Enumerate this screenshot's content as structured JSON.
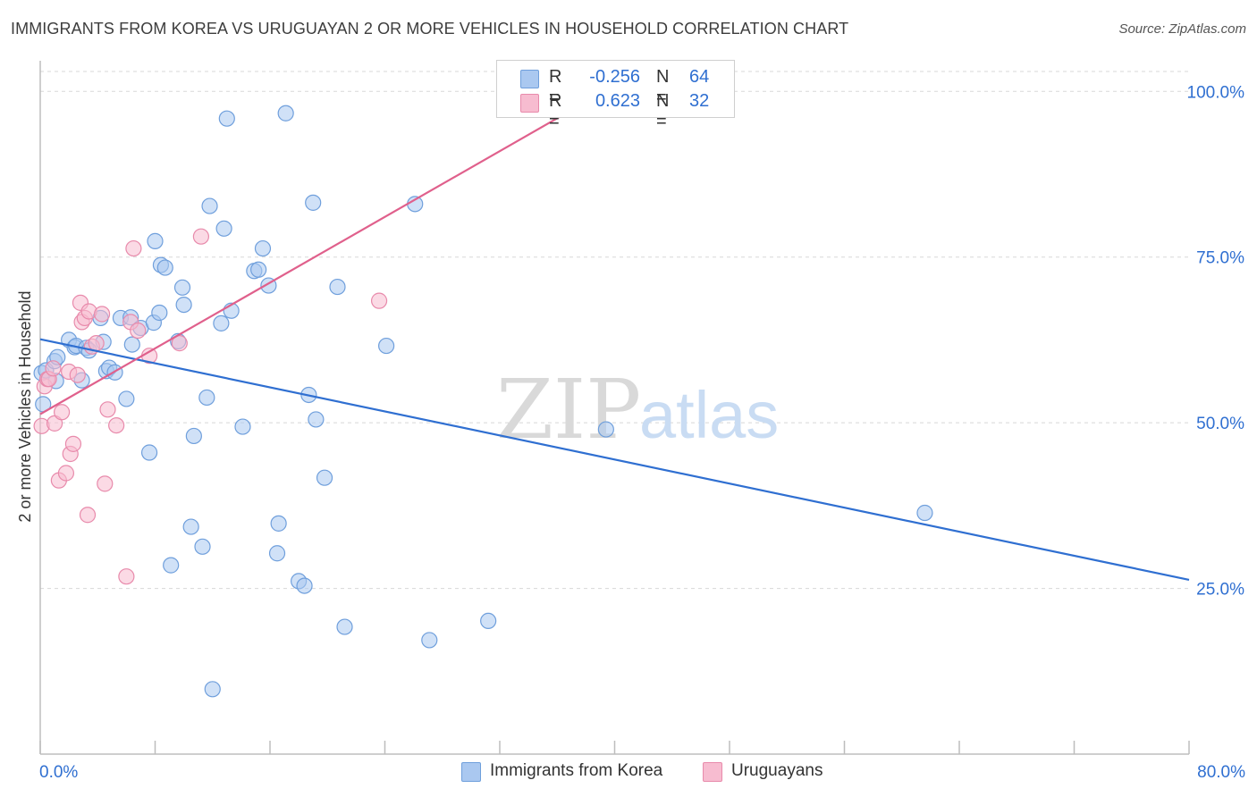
{
  "title": "IMMIGRANTS FROM KOREA VS URUGUAYAN 2 OR MORE VEHICLES IN HOUSEHOLD CORRELATION CHART",
  "source": "Source: ZipAtlas.com",
  "watermark": {
    "zip": "ZIP",
    "atlas": "atlas"
  },
  "stats": {
    "korea": {
      "r_label": "R =",
      "r_value": "-0.256",
      "n_label": "N =",
      "n_value": "64"
    },
    "uruguay": {
      "r_label": "R =",
      "r_value": "0.623",
      "n_label": "N =",
      "n_value": "32"
    }
  },
  "colors": {
    "korea_fill": "#aac8f0",
    "korea_stroke": "#6f9fdc",
    "korea_line": "#2f6fd1",
    "uruguay_fill": "#f7bcd0",
    "uruguay_stroke": "#e88aab",
    "uruguay_line": "#e0608c",
    "axis_label": "#2f6fd1",
    "grid": "#d8d8d8"
  },
  "legend": {
    "korea": "Immigrants from Korea",
    "uruguay": "Uruguayans"
  },
  "chart_data": {
    "type": "scatter",
    "title": "IMMIGRANTS FROM KOREA VS URUGUAYAN 2 OR MORE VEHICLES IN HOUSEHOLD CORRELATION CHART",
    "xlabel": "",
    "ylabel": "2 or more Vehicles in Household",
    "xlim": [
      0,
      80
    ],
    "ylim": [
      0,
      103
    ],
    "x_tick_labels": [
      "0.0%",
      "80.0%"
    ],
    "y_ticks": [
      25,
      50,
      75,
      100
    ],
    "y_tick_labels": [
      "25.0%",
      "50.0%",
      "75.0%",
      "100.0%"
    ],
    "grid": "horizontal dashed",
    "legend_position": "bottom-center",
    "series": [
      {
        "name": "Immigrants from Korea",
        "trend": {
          "x": [
            0,
            80
          ],
          "y": [
            62.6,
            26.3
          ]
        },
        "points": [
          [
            0.2,
            52.8
          ],
          [
            0.1,
            57.5
          ],
          [
            0.4,
            57.9
          ],
          [
            1.0,
            59.3
          ],
          [
            1.1,
            56.3
          ],
          [
            1.2,
            59.9
          ],
          [
            2.0,
            62.5
          ],
          [
            2.4,
            61.4
          ],
          [
            2.5,
            61.6
          ],
          [
            2.9,
            56.4
          ],
          [
            3.2,
            61.3
          ],
          [
            3.4,
            60.9
          ],
          [
            4.2,
            65.8
          ],
          [
            4.4,
            62.2
          ],
          [
            4.6,
            57.8
          ],
          [
            4.8,
            58.3
          ],
          [
            5.2,
            57.6
          ],
          [
            5.6,
            65.8
          ],
          [
            6.0,
            53.6
          ],
          [
            6.3,
            65.9
          ],
          [
            6.4,
            61.8
          ],
          [
            7.0,
            64.3
          ],
          [
            7.6,
            45.5
          ],
          [
            7.9,
            65.1
          ],
          [
            8.0,
            77.4
          ],
          [
            8.3,
            66.6
          ],
          [
            8.4,
            73.8
          ],
          [
            8.7,
            73.4
          ],
          [
            9.1,
            28.5
          ],
          [
            9.6,
            62.3
          ],
          [
            9.9,
            70.4
          ],
          [
            10.0,
            67.8
          ],
          [
            10.5,
            34.3
          ],
          [
            10.7,
            48.0
          ],
          [
            11.3,
            31.3
          ],
          [
            11.6,
            53.8
          ],
          [
            11.8,
            82.7
          ],
          [
            12.0,
            9.8
          ],
          [
            12.6,
            65.0
          ],
          [
            12.8,
            79.3
          ],
          [
            13.0,
            95.9
          ],
          [
            13.3,
            66.9
          ],
          [
            14.1,
            49.4
          ],
          [
            14.9,
            72.9
          ],
          [
            15.2,
            73.1
          ],
          [
            15.5,
            76.3
          ],
          [
            15.9,
            70.7
          ],
          [
            16.5,
            30.3
          ],
          [
            16.6,
            34.8
          ],
          [
            17.1,
            96.7
          ],
          [
            18.0,
            26.1
          ],
          [
            18.4,
            25.4
          ],
          [
            18.7,
            54.2
          ],
          [
            19.0,
            83.2
          ],
          [
            19.2,
            50.5
          ],
          [
            19.8,
            41.7
          ],
          [
            20.7,
            70.5
          ],
          [
            21.2,
            19.2
          ],
          [
            24.1,
            61.6
          ],
          [
            26.1,
            83.0
          ],
          [
            27.1,
            17.2
          ],
          [
            31.2,
            20.1
          ],
          [
            39.4,
            49.0
          ],
          [
            61.6,
            36.4
          ]
        ]
      },
      {
        "name": "Uruguayans",
        "trend": {
          "x": [
            0,
            40
          ],
          "y": [
            51.3,
            100.9
          ]
        },
        "points": [
          [
            0.1,
            49.5
          ],
          [
            0.3,
            55.5
          ],
          [
            0.5,
            56.6
          ],
          [
            0.6,
            56.6
          ],
          [
            0.9,
            58.2
          ],
          [
            1.0,
            49.9
          ],
          [
            1.3,
            41.3
          ],
          [
            1.5,
            51.6
          ],
          [
            1.8,
            42.4
          ],
          [
            2.0,
            57.7
          ],
          [
            2.1,
            45.3
          ],
          [
            2.3,
            46.8
          ],
          [
            2.6,
            57.2
          ],
          [
            2.8,
            68.1
          ],
          [
            2.9,
            65.2
          ],
          [
            3.1,
            65.8
          ],
          [
            3.3,
            36.1
          ],
          [
            3.4,
            66.8
          ],
          [
            3.6,
            61.5
          ],
          [
            3.9,
            62.0
          ],
          [
            4.3,
            66.4
          ],
          [
            4.5,
            40.8
          ],
          [
            4.7,
            52.0
          ],
          [
            5.3,
            49.6
          ],
          [
            6.0,
            26.8
          ],
          [
            6.3,
            65.2
          ],
          [
            6.5,
            76.3
          ],
          [
            6.8,
            63.9
          ],
          [
            7.6,
            60.1
          ],
          [
            9.7,
            62.0
          ],
          [
            11.2,
            78.1
          ],
          [
            23.6,
            68.4
          ]
        ]
      }
    ]
  }
}
